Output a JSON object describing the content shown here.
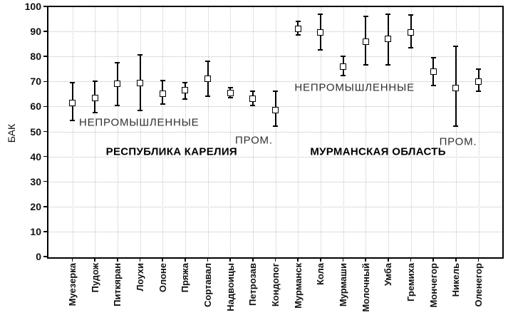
{
  "chart_data": {
    "type": "scatter",
    "subtype": "point-with-error-bars",
    "title": "",
    "xlabel": "",
    "ylabel": "БАК",
    "ylim": [
      0,
      100
    ],
    "yticks": [
      0,
      10,
      20,
      30,
      40,
      50,
      60,
      70,
      80,
      90,
      100
    ],
    "grid": true,
    "legend_position": "none",
    "categories": [
      "Муезерка",
      "Пудож",
      "Питкяран",
      "Лоухи",
      "Олоне",
      "Пряжа",
      "Сортавал",
      "Надвоицы",
      "Петрозав",
      "Кондопог",
      "Мурманск",
      "Кола",
      "Мурмаши",
      "Молочный",
      "Умба",
      "Гремиха",
      "Мончегор",
      "Никель",
      "Оленегор"
    ],
    "series": [
      {
        "name": "БАК",
        "values": [
          61.5,
          63.5,
          69,
          69.5,
          65,
          66.5,
          71,
          65.5,
          63,
          58.5,
          91,
          89.5,
          76,
          86,
          87,
          89.5,
          74,
          67.5,
          70
        ],
        "err_low": [
          54.5,
          57.5,
          60.5,
          58.5,
          61,
          63,
          64,
          63.5,
          60.5,
          52,
          88.5,
          82.5,
          72.5,
          76.5,
          76.5,
          83.5,
          68.5,
          52,
          66
        ],
        "err_high": [
          69.5,
          70,
          77.5,
          80.5,
          70.5,
          69.5,
          78,
          67.5,
          66,
          66,
          94,
          97,
          80,
          96,
          97,
          96.5,
          79.5,
          84,
          75
        ]
      }
    ],
    "annotations": [
      {
        "text": "НЕПРОМЫШЛЕННЫЕ",
        "x": 0.3,
        "y": 53.5,
        "align": "left",
        "bold": false
      },
      {
        "text": "ПРОМ.",
        "x": 8.05,
        "y": 46.5,
        "align": "center",
        "bold": false
      },
      {
        "text": "РЕСПУБЛИКА КАРЕЛИЯ",
        "x": 4.4,
        "y": 42.0,
        "align": "center",
        "bold": true
      },
      {
        "text": "НЕПРОМЫШЛЕННЫЕ",
        "x": 9.85,
        "y": 67.5,
        "align": "left",
        "bold": false
      },
      {
        "text": "ПРОМ.",
        "x": 17.1,
        "y": 46.0,
        "align": "center",
        "bold": false
      },
      {
        "text": "МУРМАНСКАЯ ОБЛАСТЬ",
        "x": 13.55,
        "y": 42.0,
        "align": "center",
        "bold": true
      }
    ],
    "marker": {
      "shape": "square",
      "fill": "#ffffff",
      "stroke": "#000000"
    },
    "colors": {
      "axis": "#000000",
      "grid": "#c0c0c0",
      "annotation": "#303030",
      "background": "#ffffff"
    }
  }
}
